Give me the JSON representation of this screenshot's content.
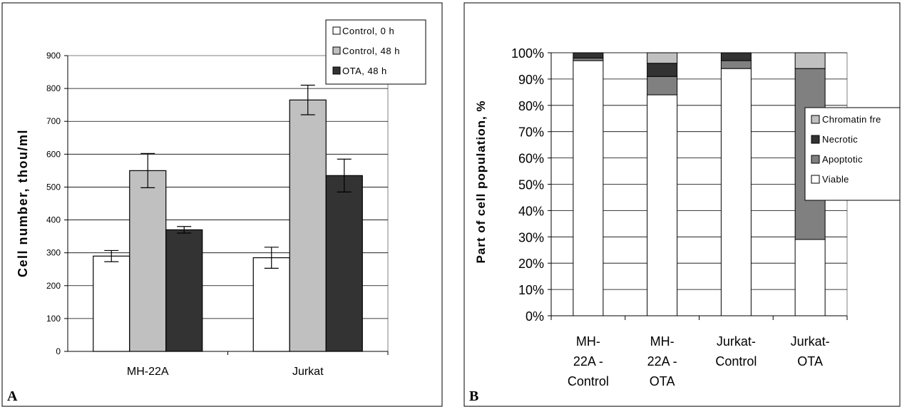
{
  "panels": {
    "a_label": "A",
    "b_label": "B"
  },
  "chart_data": [
    {
      "type": "bar",
      "ylabel": "Cell number, thou/ml",
      "ylim": [
        0,
        900
      ],
      "yticks": [
        "0",
        "100",
        "200",
        "300",
        "400",
        "500",
        "600",
        "700",
        "800",
        "900"
      ],
      "categories": [
        "MH-22A",
        "Jurkat"
      ],
      "series": [
        {
          "name": "Control, 0 h",
          "values": [
            290,
            285
          ],
          "errors": [
            17,
            32
          ],
          "color": "#ffffff"
        },
        {
          "name": "Control, 48 h",
          "values": [
            550,
            765
          ],
          "errors": [
            52,
            45
          ],
          "color": "#c0c0c0"
        },
        {
          "name": "OTA, 48 h",
          "values": [
            370,
            535
          ],
          "errors": [
            10,
            50
          ],
          "color": "#333333"
        }
      ],
      "legend": "top-right",
      "grid": true
    },
    {
      "type": "bar",
      "stacked": true,
      "ylabel": "Part of cell population, %",
      "ylim": [
        0,
        100
      ],
      "yticks": [
        "0%",
        "10%",
        "20%",
        "30%",
        "40%",
        "50%",
        "60%",
        "70%",
        "80%",
        "90%",
        "100%"
      ],
      "categories": [
        [
          "MH-",
          "22A -",
          "Control"
        ],
        [
          "MH-",
          "22A -",
          "OTA"
        ],
        [
          "Jurkat-",
          "Control"
        ],
        [
          "Jurkat-",
          "OTA"
        ]
      ],
      "series": [
        {
          "name": "Viable",
          "values": [
            97,
            84,
            94,
            29
          ],
          "color": "#ffffff"
        },
        {
          "name": "Apoptotic",
          "values": [
            1,
            7,
            3,
            65
          ],
          "color": "#808080"
        },
        {
          "name": "Necrotic",
          "values": [
            2,
            5,
            3,
            0
          ],
          "color": "#333333"
        },
        {
          "name": "Chromatin free",
          "values": [
            0,
            4,
            0,
            6
          ],
          "color": "#c0c0c0"
        }
      ],
      "legend_order": [
        "Chromatin free",
        "Necrotic",
        "Apoptotic",
        "Viable"
      ],
      "legend_labels": [
        "Chromatin fre",
        "Necrotic",
        "Apoptotic",
        "Viable"
      ],
      "legend": "right",
      "grid": true
    }
  ]
}
